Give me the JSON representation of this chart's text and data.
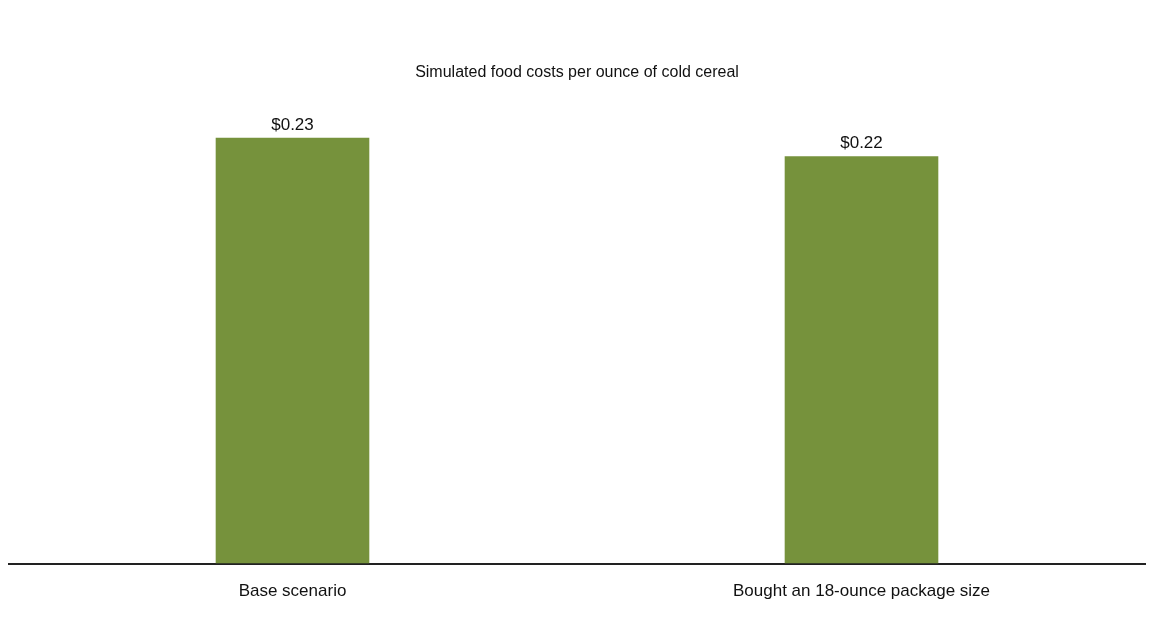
{
  "chart_data": {
    "type": "bar",
    "title": "Simulated food costs per ounce of cold cereal",
    "categories": [
      "Base scenario",
      "Bought an 18-ounce package size"
    ],
    "values": [
      0.23,
      0.22
    ],
    "value_labels": [
      "$0.23",
      "$0.22"
    ],
    "color": "#76923c",
    "grid": false,
    "legend": false
  }
}
